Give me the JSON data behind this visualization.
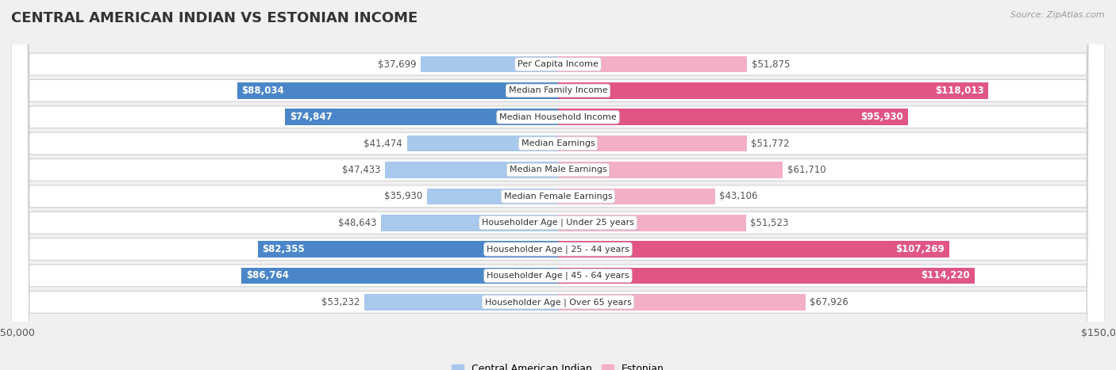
{
  "title": "CENTRAL AMERICAN INDIAN VS ESTONIAN INCOME",
  "source": "Source: ZipAtlas.com",
  "categories": [
    "Per Capita Income",
    "Median Family Income",
    "Median Household Income",
    "Median Earnings",
    "Median Male Earnings",
    "Median Female Earnings",
    "Householder Age | Under 25 years",
    "Householder Age | 25 - 44 years",
    "Householder Age | 45 - 64 years",
    "Householder Age | Over 65 years"
  ],
  "left_values": [
    37699,
    88034,
    74847,
    41474,
    47433,
    35930,
    48643,
    82355,
    86764,
    53232
  ],
  "right_values": [
    51875,
    118013,
    95930,
    51772,
    61710,
    43106,
    51523,
    107269,
    114220,
    67926
  ],
  "left_labels": [
    "$37,699",
    "$88,034",
    "$74,847",
    "$41,474",
    "$47,433",
    "$35,930",
    "$48,643",
    "$82,355",
    "$86,764",
    "$53,232"
  ],
  "right_labels": [
    "$51,875",
    "$118,013",
    "$95,930",
    "$51,772",
    "$61,710",
    "$43,106",
    "$51,523",
    "$107,269",
    "$114,220",
    "$67,926"
  ],
  "left_color_strong": "#4a86c8",
  "left_color_light": "#a8c8ed",
  "right_color_strong": "#e05585",
  "right_color_light": "#f4afc8",
  "max_value": 150000,
  "left_legend": "Central American Indian",
  "right_legend": "Estonian",
  "background_color": "#f0f0f0",
  "row_bg_color": "#ffffff",
  "title_fontsize": 13,
  "label_fontsize": 8.5,
  "cat_fontsize": 8.0,
  "tick_fontsize": 9,
  "strong_threshold": 70000
}
